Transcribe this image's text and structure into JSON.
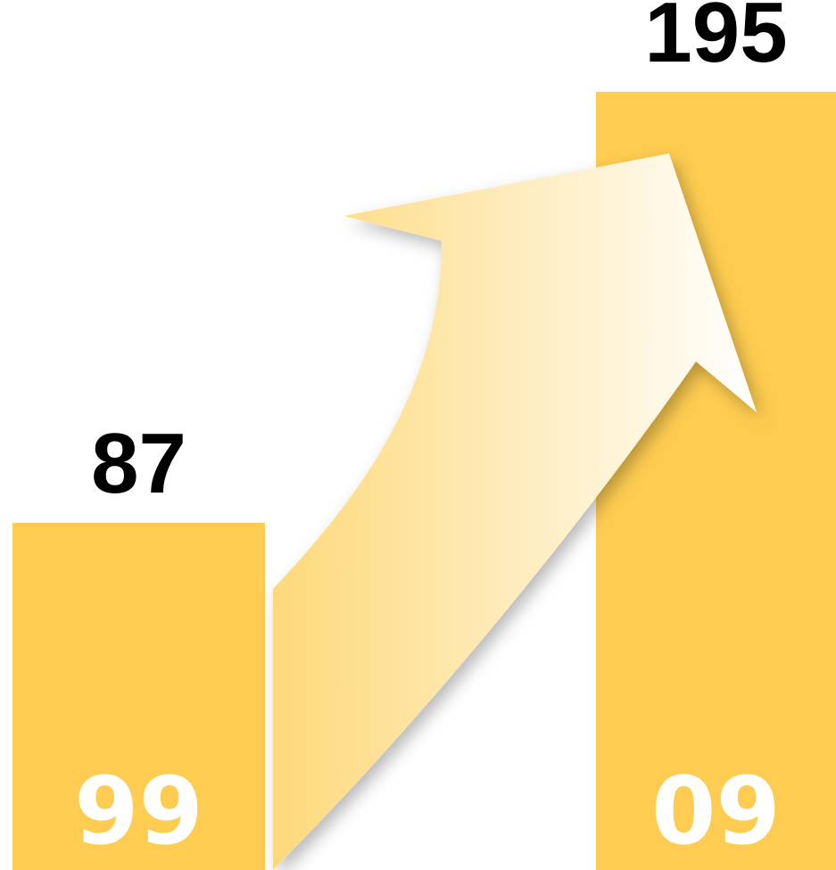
{
  "colors": {
    "bar": "#FECC50",
    "arrow_start": "#FDD97A",
    "arrow_end": "#FFFFFF",
    "value_text": "#000000",
    "category_text": "#FFFFFF"
  },
  "chart_data": {
    "type": "bar",
    "categories": [
      "99",
      "09"
    ],
    "values": [
      87,
      195
    ],
    "title": "",
    "xlabel": "",
    "ylabel": "",
    "ylim": [
      0,
      218
    ],
    "grid": false,
    "legend": "none",
    "annotations": [
      {
        "type": "arrow",
        "direction": "up-right",
        "from": "99",
        "to": "09"
      }
    ]
  }
}
